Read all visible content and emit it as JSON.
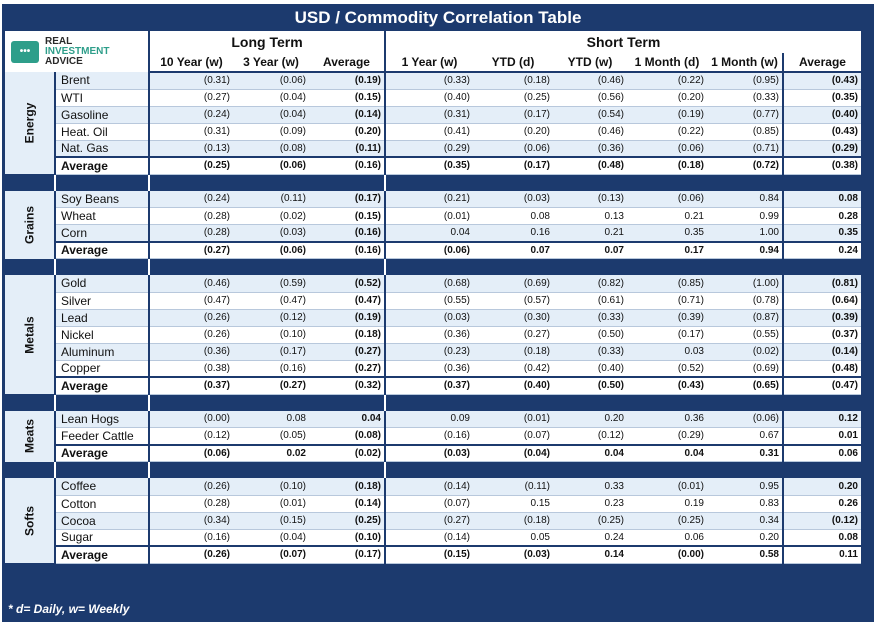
{
  "title": "USD / Commodity Correlation Table",
  "footnote": "* d= Daily, w= Weekly",
  "logo": {
    "line1": "REAL",
    "line2": "INVESTMENT",
    "line3": "ADVICE",
    "icon": "chat-dots-icon",
    "color": "#2e9e8a"
  },
  "headers": {
    "long_term": "Long Term",
    "short_term": "Short Term",
    "columns": [
      "10 Year (w)",
      "3 Year (w)",
      "Average",
      "1 Year (w)",
      "YTD (d)",
      "YTD (w)",
      "1 Month (d)",
      "1 Month (w)",
      "Average"
    ]
  },
  "colors": {
    "frame": "#1c3a6e",
    "alt_row": "#e4eef8"
  },
  "groups": [
    {
      "name": "Energy",
      "rows": [
        {
          "name": "Brent",
          "values": [
            "(0.31)",
            "(0.06)",
            "(0.19)",
            "(0.33)",
            "(0.18)",
            "(0.46)",
            "(0.22)",
            "(0.95)",
            "(0.43)"
          ]
        },
        {
          "name": "WTI",
          "values": [
            "(0.27)",
            "(0.04)",
            "(0.15)",
            "(0.40)",
            "(0.25)",
            "(0.56)",
            "(0.20)",
            "(0.33)",
            "(0.35)"
          ]
        },
        {
          "name": "Gasoline",
          "values": [
            "(0.24)",
            "(0.04)",
            "(0.14)",
            "(0.31)",
            "(0.17)",
            "(0.54)",
            "(0.19)",
            "(0.77)",
            "(0.40)"
          ]
        },
        {
          "name": "Heat. Oil",
          "values": [
            "(0.31)",
            "(0.09)",
            "(0.20)",
            "(0.41)",
            "(0.20)",
            "(0.46)",
            "(0.22)",
            "(0.85)",
            "(0.43)"
          ]
        },
        {
          "name": "Nat. Gas",
          "values": [
            "(0.13)",
            "(0.08)",
            "(0.11)",
            "(0.29)",
            "(0.06)",
            "(0.36)",
            "(0.06)",
            "(0.71)",
            "(0.29)"
          ]
        }
      ],
      "average": {
        "name": "Average",
        "values": [
          "(0.25)",
          "(0.06)",
          "(0.16)",
          "(0.35)",
          "(0.17)",
          "(0.48)",
          "(0.18)",
          "(0.72)",
          "(0.38)"
        ]
      }
    },
    {
      "name": "Grains",
      "rows": [
        {
          "name": "Soy Beans",
          "values": [
            "(0.24)",
            "(0.11)",
            "(0.17)",
            "(0.21)",
            "(0.03)",
            "(0.13)",
            "(0.06)",
            "0.84",
            "0.08"
          ]
        },
        {
          "name": "Wheat",
          "values": [
            "(0.28)",
            "(0.02)",
            "(0.15)",
            "(0.01)",
            "0.08",
            "0.13",
            "0.21",
            "0.99",
            "0.28"
          ]
        },
        {
          "name": "Corn",
          "values": [
            "(0.28)",
            "(0.03)",
            "(0.16)",
            "0.04",
            "0.16",
            "0.21",
            "0.35",
            "1.00",
            "0.35"
          ]
        }
      ],
      "average": {
        "name": "Average",
        "values": [
          "(0.27)",
          "(0.06)",
          "(0.16)",
          "(0.06)",
          "0.07",
          "0.07",
          "0.17",
          "0.94",
          "0.24"
        ]
      }
    },
    {
      "name": "Metals",
      "rows": [
        {
          "name": "Gold",
          "values": [
            "(0.46)",
            "(0.59)",
            "(0.52)",
            "(0.68)",
            "(0.69)",
            "(0.82)",
            "(0.85)",
            "(1.00)",
            "(0.81)"
          ]
        },
        {
          "name": "Silver",
          "values": [
            "(0.47)",
            "(0.47)",
            "(0.47)",
            "(0.55)",
            "(0.57)",
            "(0.61)",
            "(0.71)",
            "(0.78)",
            "(0.64)"
          ]
        },
        {
          "name": "Lead",
          "values": [
            "(0.26)",
            "(0.12)",
            "(0.19)",
            "(0.03)",
            "(0.30)",
            "(0.33)",
            "(0.39)",
            "(0.87)",
            "(0.39)"
          ]
        },
        {
          "name": "Nickel",
          "values": [
            "(0.26)",
            "(0.10)",
            "(0.18)",
            "(0.36)",
            "(0.27)",
            "(0.50)",
            "(0.17)",
            "(0.55)",
            "(0.37)"
          ]
        },
        {
          "name": "Aluminum",
          "values": [
            "(0.36)",
            "(0.17)",
            "(0.27)",
            "(0.23)",
            "(0.18)",
            "(0.33)",
            "0.03",
            "(0.02)",
            "(0.14)"
          ]
        },
        {
          "name": "Copper",
          "values": [
            "(0.38)",
            "(0.16)",
            "(0.27)",
            "(0.36)",
            "(0.42)",
            "(0.40)",
            "(0.52)",
            "(0.69)",
            "(0.48)"
          ]
        }
      ],
      "average": {
        "name": "Average",
        "values": [
          "(0.37)",
          "(0.27)",
          "(0.32)",
          "(0.37)",
          "(0.40)",
          "(0.50)",
          "(0.43)",
          "(0.65)",
          "(0.47)"
        ]
      }
    },
    {
      "name": "Meats",
      "rows": [
        {
          "name": "Lean Hogs",
          "values": [
            "(0.00)",
            "0.08",
            "0.04",
            "0.09",
            "(0.01)",
            "0.20",
            "0.36",
            "(0.06)",
            "0.12"
          ]
        },
        {
          "name": "Feeder Cattle",
          "values": [
            "(0.12)",
            "(0.05)",
            "(0.08)",
            "(0.16)",
            "(0.07)",
            "(0.12)",
            "(0.29)",
            "0.67",
            "0.01"
          ]
        }
      ],
      "average": {
        "name": "Average",
        "values": [
          "(0.06)",
          "0.02",
          "(0.02)",
          "(0.03)",
          "(0.04)",
          "0.04",
          "0.04",
          "0.31",
          "0.06"
        ]
      }
    },
    {
      "name": "Softs",
      "rows": [
        {
          "name": "Coffee",
          "values": [
            "(0.26)",
            "(0.10)",
            "(0.18)",
            "(0.14)",
            "(0.11)",
            "0.33",
            "(0.01)",
            "0.95",
            "0.20"
          ]
        },
        {
          "name": "Cotton",
          "values": [
            "(0.28)",
            "(0.01)",
            "(0.14)",
            "(0.07)",
            "0.15",
            "0.23",
            "0.19",
            "0.83",
            "0.26"
          ]
        },
        {
          "name": "Cocoa",
          "values": [
            "(0.34)",
            "(0.15)",
            "(0.25)",
            "(0.27)",
            "(0.18)",
            "(0.25)",
            "(0.25)",
            "0.34",
            "(0.12)"
          ]
        },
        {
          "name": "Sugar",
          "values": [
            "(0.16)",
            "(0.04)",
            "(0.10)",
            "(0.14)",
            "0.05",
            "0.24",
            "0.06",
            "0.20",
            "0.08"
          ]
        }
      ],
      "average": {
        "name": "Average",
        "values": [
          "(0.26)",
          "(0.07)",
          "(0.17)",
          "(0.15)",
          "(0.03)",
          "0.14",
          "(0.00)",
          "0.58",
          "0.11"
        ]
      }
    }
  ]
}
